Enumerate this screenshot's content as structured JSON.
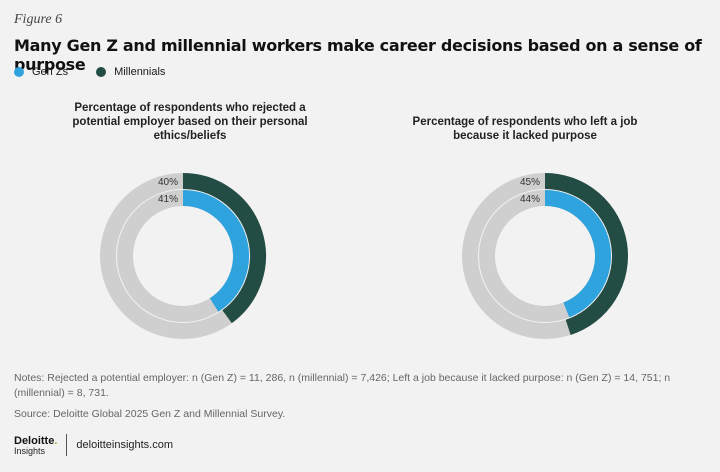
{
  "figure_label": "Figure 6",
  "title": "Many Gen Z and millennial workers make career decisions based on a sense of purpose",
  "legend": [
    {
      "label": "Gen Zs",
      "color": "#2fa3de"
    },
    {
      "label": "Millennials",
      "color": "#234d44"
    }
  ],
  "colors": {
    "genz": "#2fa3de",
    "millennial": "#234d44",
    "track": "#cfcfcf"
  },
  "chart_data": [
    {
      "type": "donut",
      "title": "Percentage of respondents who rejected a potential employer based on their personal ethics/beliefs",
      "series": [
        {
          "name": "Millennials",
          "ring": "outer",
          "value": 40,
          "label": "40%"
        },
        {
          "name": "Gen Zs",
          "ring": "inner",
          "value": 41,
          "label": "41%"
        }
      ]
    },
    {
      "type": "donut",
      "title": "Percentage of respondents who left a job because it lacked purpose",
      "series": [
        {
          "name": "Millennials",
          "ring": "outer",
          "value": 45,
          "label": "45%"
        },
        {
          "name": "Gen Zs",
          "ring": "inner",
          "value": 44,
          "label": "44%"
        }
      ]
    }
  ],
  "notes": "Notes: Rejected a potential employer: n (Gen Z) = 11, 286, n (millennial) = 7,426; Left a job because it lacked purpose: n (Gen Z) = 14, 751; n (millennial) = 8, 731.",
  "source": "Source: Deloitte Global 2025 Gen Z and Millennial Survey.",
  "footer": {
    "brand": "Deloitte",
    "brand_dot": ".",
    "brand_sub": "Insights",
    "site": "deloitteinsights.com"
  }
}
